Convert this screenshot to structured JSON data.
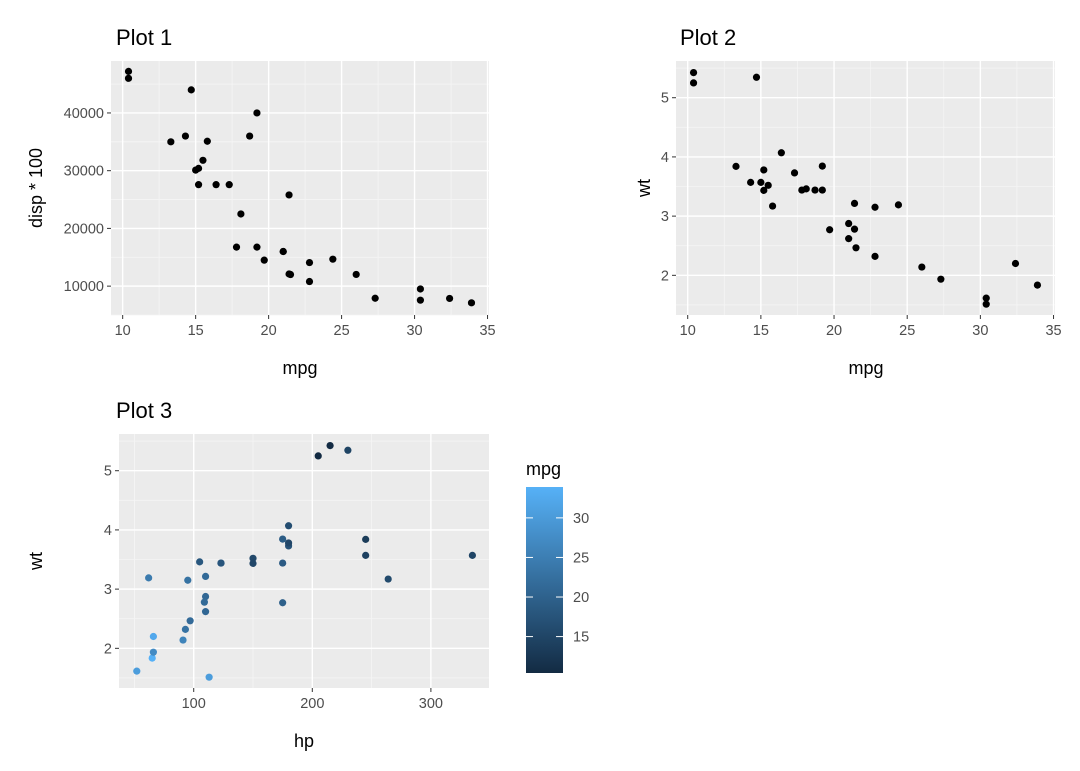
{
  "chart_data": [
    {
      "id": "plot1",
      "type": "scatter",
      "title": "Plot 1",
      "xlabel": "mpg",
      "ylabel": "disp * 100",
      "xlim": [
        9.2,
        35.1
      ],
      "ylim": [
        5000,
        49000
      ],
      "x_ticks": [
        10,
        15,
        20,
        25,
        30,
        35
      ],
      "x_tick_labels": [
        "10",
        "15",
        "20",
        "25",
        "30",
        "35"
      ],
      "y_ticks": [
        10000,
        20000,
        30000,
        40000
      ],
      "y_tick_labels": [
        "10000",
        "20000",
        "30000",
        "40000"
      ],
      "point_color": "#000000",
      "x": [
        21.0,
        21.0,
        22.8,
        21.4,
        18.7,
        18.1,
        14.3,
        24.4,
        22.8,
        19.2,
        17.8,
        16.4,
        17.3,
        15.2,
        10.4,
        10.4,
        14.7,
        32.4,
        30.4,
        33.9,
        21.5,
        15.5,
        15.2,
        13.3,
        19.2,
        27.3,
        26.0,
        30.4,
        15.8,
        19.7,
        15.0,
        21.4
      ],
      "y": [
        16000,
        16000,
        10800,
        25800,
        36000,
        22500,
        36000,
        14670,
        14080,
        16760,
        16760,
        27580,
        27580,
        27580,
        47200,
        46000,
        44000,
        7870,
        7570,
        7110,
        12010,
        31800,
        30400,
        35000,
        40000,
        7900,
        12030,
        9510,
        35100,
        14500,
        30100,
        12100
      ]
    },
    {
      "id": "plot2",
      "type": "scatter",
      "title": "Plot 2",
      "xlabel": "mpg",
      "ylabel": "wt",
      "xlim": [
        9.2,
        35.1
      ],
      "ylim": [
        1.33,
        5.62
      ],
      "x_ticks": [
        10,
        15,
        20,
        25,
        30,
        35
      ],
      "x_tick_labels": [
        "10",
        "15",
        "20",
        "25",
        "30",
        "35"
      ],
      "y_ticks": [
        2,
        3,
        4,
        5
      ],
      "y_tick_labels": [
        "2",
        "3",
        "4",
        "5"
      ],
      "point_color": "#000000",
      "x": [
        21.0,
        21.0,
        22.8,
        21.4,
        18.7,
        18.1,
        14.3,
        24.4,
        22.8,
        19.2,
        17.8,
        16.4,
        17.3,
        15.2,
        10.4,
        10.4,
        14.7,
        32.4,
        30.4,
        33.9,
        21.5,
        15.5,
        15.2,
        13.3,
        19.2,
        27.3,
        26.0,
        30.4,
        15.8,
        19.7,
        15.0,
        21.4
      ],
      "y": [
        2.62,
        2.875,
        2.32,
        3.215,
        3.44,
        3.46,
        3.57,
        3.19,
        3.15,
        3.44,
        3.44,
        4.07,
        3.73,
        3.78,
        5.25,
        5.424,
        5.345,
        2.2,
        1.615,
        1.835,
        2.465,
        3.52,
        3.435,
        3.84,
        3.845,
        1.935,
        2.14,
        1.513,
        3.17,
        2.77,
        3.57,
        2.78
      ]
    },
    {
      "id": "plot3",
      "type": "scatter",
      "title": "Plot 3",
      "xlabel": "hp",
      "ylabel": "wt",
      "xlim": [
        37,
        349
      ],
      "ylim": [
        1.33,
        5.62
      ],
      "x_ticks": [
        100,
        200,
        300
      ],
      "x_tick_labels": [
        "100",
        "200",
        "300"
      ],
      "y_ticks": [
        2,
        3,
        4,
        5
      ],
      "y_tick_labels": [
        "2",
        "3",
        "4",
        "5"
      ],
      "x": [
        110,
        110,
        93,
        110,
        175,
        105,
        245,
        62,
        95,
        123,
        123,
        180,
        180,
        180,
        205,
        215,
        230,
        66,
        52,
        65,
        97,
        150,
        150,
        245,
        175,
        66,
        91,
        113,
        264,
        175,
        335,
        109
      ],
      "y": [
        2.62,
        2.875,
        2.32,
        3.215,
        3.44,
        3.46,
        3.57,
        3.19,
        3.15,
        3.44,
        3.44,
        4.07,
        3.73,
        3.78,
        5.25,
        5.424,
        5.345,
        2.2,
        1.615,
        1.835,
        2.465,
        3.52,
        3.435,
        3.84,
        3.845,
        1.935,
        2.14,
        1.513,
        3.17,
        2.77,
        3.57,
        2.78
      ],
      "color_values": [
        21.0,
        21.0,
        22.8,
        21.4,
        18.7,
        18.1,
        14.3,
        24.4,
        22.8,
        19.2,
        17.8,
        16.4,
        17.3,
        15.2,
        10.4,
        10.4,
        14.7,
        32.4,
        30.4,
        33.9,
        21.5,
        15.5,
        15.2,
        13.3,
        19.2,
        27.3,
        26.0,
        30.4,
        15.8,
        19.7,
        15.0,
        21.4
      ],
      "color_low": "#132B43",
      "color_high": "#56B1F7",
      "legend": {
        "title": "mpg",
        "range": [
          10.4,
          33.9
        ],
        "ticks": [
          15,
          20,
          25,
          30
        ],
        "tick_labels": [
          "15",
          "20",
          "25",
          "30"
        ],
        "placement": "right"
      }
    }
  ],
  "style": {
    "panel_background": "#EBEBEB",
    "grid_major": "#FFFFFF",
    "grid_minor": "#F5F5F5",
    "tick_color": "#333333"
  }
}
